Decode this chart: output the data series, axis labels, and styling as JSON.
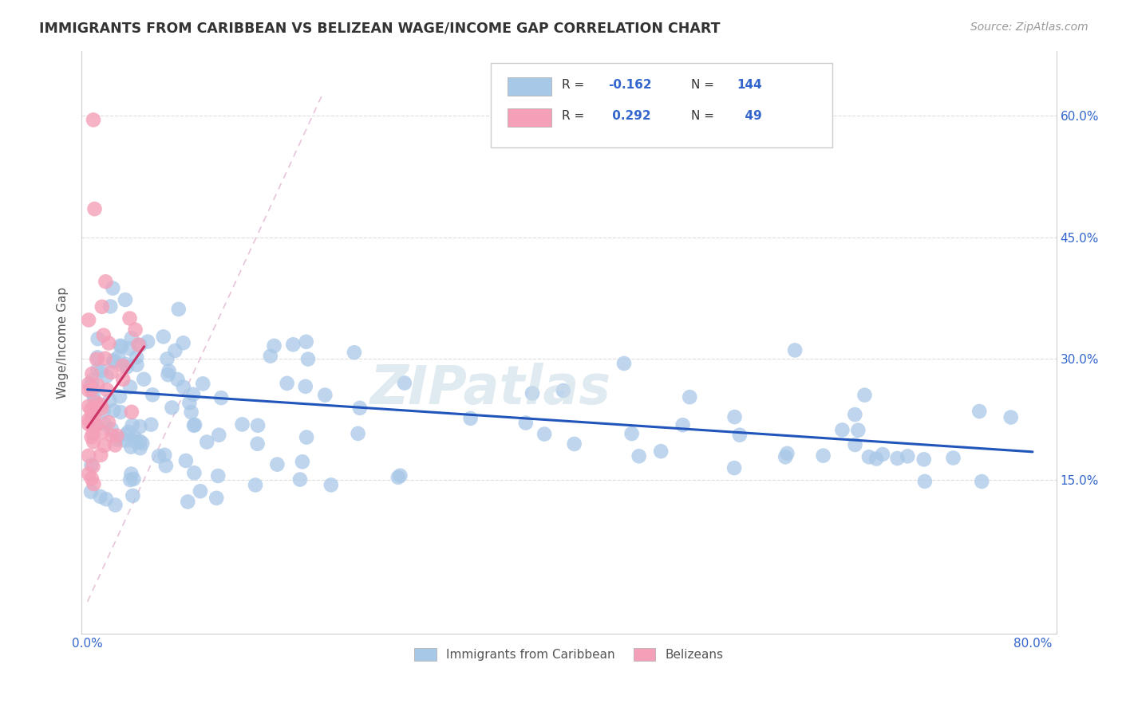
{
  "title": "IMMIGRANTS FROM CARIBBEAN VS BELIZEAN WAGE/INCOME GAP CORRELATION CHART",
  "source": "Source: ZipAtlas.com",
  "ylabel": "Wage/Income Gap",
  "legend_label1": "Immigrants from Caribbean",
  "legend_label2": "Belizeans",
  "R1": "-0.162",
  "N1": "144",
  "R2": "0.292",
  "N2": "49",
  "color_blue": "#a8c8e8",
  "color_pink": "#f4a0b8",
  "line_blue": "#2255bb",
  "line_pink": "#cc3366",
  "line_dashed_color": "#ddaacc",
  "watermark": "ZIPatlas",
  "xlim_min": -0.005,
  "xlim_max": 0.82,
  "ylim_min": -0.04,
  "ylim_max": 0.68,
  "blue_line_x0": 0.0,
  "blue_line_x1": 0.8,
  "blue_line_y0": 0.262,
  "blue_line_y1": 0.185,
  "pink_line_x0": 0.0,
  "pink_line_x1": 0.048,
  "pink_line_y0": 0.215,
  "pink_line_y1": 0.315,
  "dashed_line_x0": 0.0,
  "dashed_line_x1": 0.2,
  "dashed_line_y0": 0.0,
  "dashed_line_y1": 0.63
}
